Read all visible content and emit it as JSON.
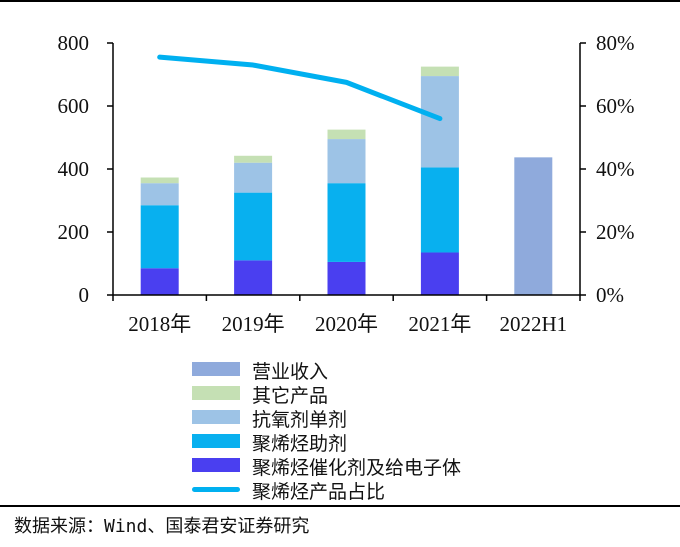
{
  "chart_data": {
    "type": "bar",
    "categories": [
      "2018年",
      "2019年",
      "2020年",
      "2021年",
      "2022H1"
    ],
    "stacked": true,
    "y_left": {
      "min": 0,
      "max": 800,
      "ticks": [
        0,
        200,
        400,
        600,
        800
      ]
    },
    "y_right": {
      "min": 0,
      "max": 80,
      "ticks": [
        "0%",
        "20%",
        "40%",
        "60%",
        "80%"
      ]
    },
    "series": [
      {
        "name": "聚烯烃催化剂及给电子体",
        "color": "#4a3ff0",
        "values": [
          85,
          110,
          105,
          135,
          null
        ]
      },
      {
        "name": "聚烯烃助剂",
        "color": "#08b0ef",
        "values": [
          200,
          215,
          250,
          270,
          null
        ]
      },
      {
        "name": "抗氧剂单剂",
        "color": "#9dc3e6",
        "values": [
          70,
          95,
          140,
          290,
          null
        ]
      },
      {
        "name": "其它产品",
        "color": "#c5e0b4",
        "values": [
          18,
          22,
          30,
          30,
          null
        ]
      },
      {
        "name": "营业收入",
        "color": "#8faadc",
        "values": [
          null,
          null,
          null,
          null,
          437
        ]
      }
    ],
    "line": {
      "name": "聚烯烃产品占比",
      "color": "#00b0f0",
      "axis": "right",
      "values": [
        75.5,
        73,
        67.5,
        56,
        null
      ]
    },
    "legend_order": [
      "营业收入",
      "其它产品",
      "抗氧剂单剂",
      "聚烯烃助剂",
      "聚烯烃催化剂及给电子体",
      "聚烯烃产品占比"
    ],
    "grid": false,
    "legend_position": "bottom"
  },
  "source_text": "数据来源：Wind、国泰君安证券研究"
}
